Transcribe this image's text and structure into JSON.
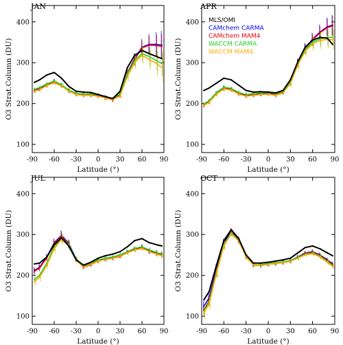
{
  "chart_data": [
    {
      "type": "line",
      "title": "JAN",
      "xlabel": "Latitude (°)",
      "ylabel": "O3 Strat.Column (DU)",
      "xlim": [
        -90,
        90
      ],
      "ylim": [
        80,
        440
      ],
      "xticks": [
        -90,
        -60,
        -30,
        0,
        30,
        60,
        90
      ],
      "xtick_labels": [
        "-90",
        "-60",
        "-30",
        "0",
        "30",
        "60",
        "90"
      ],
      "yticks": [
        100,
        200,
        300,
        400
      ],
      "ytick_labels": [
        "100",
        "200",
        "300",
        "400"
      ],
      "x": [
        -87,
        -80,
        -70,
        -60,
        -50,
        -40,
        -30,
        -20,
        -10,
        0,
        10,
        20,
        30,
        40,
        50,
        60,
        70,
        80,
        87
      ],
      "series": [
        {
          "color": "#000000",
          "values": [
            252,
            258,
            270,
            276,
            262,
            242,
            230,
            228,
            227,
            222,
            217,
            212,
            230,
            288,
            318,
            330,
            322,
            315,
            310
          ],
          "errors": [
            0,
            0,
            0,
            0,
            0,
            0,
            0,
            0,
            0,
            0,
            0,
            0,
            0,
            0,
            0,
            0,
            0,
            0,
            0
          ]
        },
        {
          "color": "#0000ee",
          "values": [
            232,
            236,
            246,
            254,
            245,
            232,
            224,
            222,
            222,
            220,
            215,
            210,
            222,
            275,
            310,
            338,
            345,
            345,
            343
          ],
          "errors": [
            5,
            5,
            5,
            6,
            5,
            5,
            5,
            5,
            5,
            5,
            5,
            5,
            7,
            10,
            14,
            20,
            25,
            30,
            35
          ]
        },
        {
          "color": "#ee0000",
          "values": [
            232,
            235,
            245,
            253,
            244,
            231,
            223,
            221,
            221,
            219,
            214,
            209,
            221,
            274,
            308,
            336,
            343,
            342,
            340
          ],
          "errors": [
            5,
            5,
            5,
            6,
            5,
            5,
            5,
            5,
            5,
            5,
            5,
            5,
            7,
            10,
            14,
            18,
            22,
            26,
            30
          ]
        },
        {
          "color": "#22cc22",
          "values": [
            235,
            239,
            248,
            255,
            246,
            233,
            225,
            223,
            223,
            221,
            216,
            212,
            224,
            272,
            305,
            322,
            315,
            305,
            298
          ],
          "errors": [
            5,
            5,
            5,
            6,
            5,
            5,
            5,
            5,
            5,
            5,
            5,
            5,
            7,
            10,
            14,
            18,
            22,
            26,
            30
          ]
        },
        {
          "color": "#ffaa00",
          "values": [
            230,
            234,
            244,
            251,
            243,
            230,
            222,
            220,
            220,
            218,
            213,
            209,
            219,
            266,
            300,
            318,
            308,
            298,
            288
          ],
          "errors": [
            6,
            6,
            6,
            7,
            6,
            6,
            6,
            6,
            6,
            6,
            6,
            6,
            8,
            12,
            16,
            20,
            25,
            30,
            35
          ]
        }
      ]
    },
    {
      "type": "line",
      "title": "APR",
      "xlabel": "Latitude (°)",
      "ylabel": "O3 Strat.Column (DU)",
      "xlim": [
        -90,
        90
      ],
      "ylim": [
        80,
        440
      ],
      "xticks": [
        -90,
        -60,
        -30,
        0,
        30,
        60,
        90
      ],
      "xtick_labels": [
        "-90",
        "-60",
        "-30",
        "0",
        "30",
        "60",
        "90"
      ],
      "yticks": [
        100,
        200,
        300,
        400
      ],
      "ytick_labels": [
        "100",
        "200",
        "300",
        "400"
      ],
      "legend": [
        "MLS/OMI",
        "CAMchem CARMA",
        "CAMchem MAM4",
        "WACCM CARMA",
        "WACCM MAM4"
      ],
      "legend_position": "top-right",
      "x": [
        -87,
        -80,
        -70,
        -60,
        -50,
        -40,
        -30,
        -20,
        -10,
        0,
        10,
        20,
        30,
        40,
        50,
        60,
        70,
        80,
        87
      ],
      "series": [
        {
          "name": "MLS/OMI",
          "color": "#000000",
          "values": [
            232,
            238,
            250,
            262,
            258,
            245,
            232,
            228,
            229,
            228,
            226,
            232,
            258,
            302,
            338,
            355,
            362,
            360,
            345
          ],
          "errors": [
            0,
            0,
            0,
            0,
            0,
            0,
            0,
            0,
            0,
            0,
            0,
            0,
            0,
            0,
            0,
            0,
            0,
            0,
            0
          ]
        },
        {
          "name": "CAMchem CARMA",
          "color": "#0000ee",
          "values": [
            197,
            205,
            225,
            238,
            235,
            225,
            220,
            222,
            224,
            225,
            222,
            228,
            252,
            300,
            336,
            358,
            375,
            388,
            392
          ],
          "errors": [
            5,
            5,
            5,
            6,
            5,
            5,
            5,
            5,
            5,
            5,
            5,
            5,
            7,
            10,
            12,
            15,
            18,
            22,
            25
          ]
        },
        {
          "name": "CAMchem MAM4",
          "color": "#ee0000",
          "values": [
            196,
            204,
            224,
            237,
            234,
            224,
            219,
            221,
            223,
            224,
            221,
            227,
            251,
            299,
            335,
            356,
            373,
            386,
            390
          ],
          "errors": [
            5,
            5,
            5,
            6,
            5,
            5,
            5,
            5,
            5,
            5,
            5,
            5,
            7,
            10,
            12,
            15,
            18,
            22,
            25
          ]
        },
        {
          "name": "WACCM CARMA",
          "color": "#22cc22",
          "values": [
            199,
            207,
            227,
            240,
            237,
            227,
            222,
            224,
            226,
            227,
            224,
            229,
            253,
            298,
            332,
            350,
            358,
            362,
            362
          ],
          "errors": [
            5,
            5,
            5,
            6,
            5,
            5,
            5,
            5,
            5,
            5,
            5,
            5,
            7,
            10,
            12,
            15,
            18,
            20,
            22
          ]
        },
        {
          "name": "WACCM MAM4",
          "color": "#ffaa00",
          "values": [
            195,
            203,
            223,
            236,
            233,
            223,
            218,
            220,
            222,
            223,
            220,
            226,
            249,
            294,
            328,
            346,
            354,
            357,
            356
          ],
          "errors": [
            6,
            6,
            6,
            7,
            6,
            6,
            6,
            6,
            6,
            6,
            6,
            6,
            8,
            12,
            14,
            16,
            20,
            22,
            25
          ]
        }
      ]
    },
    {
      "type": "line",
      "title": "JUL",
      "xlabel": "Latitude (°)",
      "ylabel": "O3 Strat.Column (DU)",
      "xlim": [
        -90,
        90
      ],
      "ylim": [
        80,
        440
      ],
      "xticks": [
        -90,
        -60,
        -30,
        0,
        30,
        60,
        90
      ],
      "xtick_labels": [
        "-90",
        "-60",
        "-30",
        "0",
        "30",
        "60",
        "90"
      ],
      "yticks": [
        100,
        200,
        300,
        400
      ],
      "ytick_labels": [
        "100",
        "200",
        "300",
        "400"
      ],
      "x": [
        -87,
        -80,
        -70,
        -60,
        -50,
        -40,
        -30,
        -20,
        -10,
        0,
        10,
        20,
        30,
        40,
        50,
        60,
        70,
        80,
        87
      ],
      "series": [
        {
          "color": "#000000",
          "values": [
            228,
            230,
            245,
            275,
            292,
            272,
            238,
            225,
            232,
            242,
            248,
            252,
            258,
            270,
            285,
            290,
            280,
            275,
            272
          ],
          "errors": [
            0,
            0,
            0,
            0,
            0,
            0,
            0,
            0,
            0,
            0,
            0,
            0,
            0,
            0,
            0,
            0,
            0,
            0,
            0
          ]
        },
        {
          "color": "#0000ee",
          "values": [
            212,
            220,
            245,
            280,
            298,
            278,
            240,
            222,
            228,
            236,
            240,
            243,
            248,
            258,
            265,
            270,
            260,
            255,
            252
          ],
          "errors": [
            8,
            8,
            8,
            10,
            12,
            10,
            6,
            5,
            5,
            5,
            5,
            5,
            5,
            5,
            5,
            6,
            6,
            6,
            6
          ]
        },
        {
          "color": "#ee0000",
          "values": [
            210,
            218,
            243,
            278,
            296,
            276,
            238,
            220,
            226,
            235,
            239,
            242,
            246,
            256,
            263,
            268,
            258,
            253,
            250
          ],
          "errors": [
            8,
            8,
            8,
            10,
            12,
            10,
            6,
            5,
            5,
            5,
            5,
            5,
            5,
            5,
            5,
            6,
            6,
            6,
            6
          ]
        },
        {
          "color": "#22cc22",
          "values": [
            190,
            200,
            230,
            270,
            292,
            275,
            240,
            224,
            230,
            238,
            242,
            245,
            250,
            258,
            266,
            270,
            262,
            256,
            252
          ],
          "errors": [
            8,
            8,
            8,
            10,
            12,
            10,
            6,
            5,
            5,
            5,
            5,
            5,
            5,
            5,
            5,
            6,
            6,
            6,
            6
          ]
        },
        {
          "color": "#ffaa00",
          "values": [
            185,
            195,
            225,
            265,
            288,
            272,
            237,
            221,
            227,
            235,
            239,
            242,
            247,
            255,
            262,
            266,
            258,
            252,
            248
          ],
          "errors": [
            10,
            10,
            10,
            12,
            14,
            12,
            7,
            6,
            6,
            6,
            6,
            6,
            6,
            6,
            6,
            7,
            7,
            7,
            7
          ]
        }
      ]
    },
    {
      "type": "line",
      "title": "OCT",
      "xlabel": "Latitude (°)",
      "ylabel": "O3 Strat.Column (DU)",
      "xlim": [
        -90,
        90
      ],
      "ylim": [
        80,
        440
      ],
      "xticks": [
        -90,
        -60,
        -30,
        0,
        30,
        60,
        90
      ],
      "xtick_labels": [
        "-90",
        "-60",
        "-30",
        "0",
        "30",
        "60",
        "90"
      ],
      "yticks": [
        100,
        200,
        300,
        400
      ],
      "ytick_labels": [
        "100",
        "200",
        "300",
        "400"
      ],
      "x": [
        -87,
        -80,
        -70,
        -60,
        -50,
        -40,
        -30,
        -20,
        -10,
        0,
        10,
        20,
        30,
        40,
        50,
        60,
        70,
        80,
        87
      ],
      "series": [
        {
          "color": "#000000",
          "values": [
            140,
            160,
            225,
            285,
            312,
            290,
            250,
            230,
            230,
            232,
            235,
            238,
            242,
            255,
            268,
            272,
            265,
            255,
            248
          ],
          "errors": [
            0,
            0,
            0,
            0,
            0,
            0,
            0,
            0,
            0,
            0,
            0,
            0,
            0,
            0,
            0,
            0,
            0,
            0,
            0
          ]
        },
        {
          "color": "#0000ee",
          "values": [
            125,
            145,
            215,
            280,
            308,
            288,
            248,
            226,
            225,
            228,
            230,
            232,
            236,
            245,
            255,
            258,
            250,
            238,
            228
          ],
          "errors": [
            12,
            12,
            12,
            10,
            8,
            8,
            6,
            5,
            5,
            5,
            5,
            5,
            5,
            5,
            5,
            6,
            6,
            6,
            6
          ]
        },
        {
          "color": "#ee0000",
          "values": [
            115,
            138,
            210,
            276,
            305,
            286,
            246,
            225,
            224,
            227,
            229,
            231,
            235,
            244,
            254,
            257,
            249,
            236,
            226
          ],
          "errors": [
            12,
            12,
            12,
            10,
            8,
            8,
            6,
            5,
            5,
            5,
            5,
            5,
            5,
            5,
            5,
            6,
            6,
            6,
            6
          ]
        },
        {
          "color": "#22cc22",
          "values": [
            112,
            135,
            208,
            275,
            304,
            285,
            246,
            226,
            226,
            229,
            231,
            233,
            236,
            244,
            252,
            255,
            247,
            234,
            224
          ],
          "errors": [
            12,
            12,
            12,
            10,
            8,
            8,
            6,
            5,
            5,
            5,
            5,
            5,
            5,
            5,
            5,
            6,
            6,
            6,
            6
          ]
        },
        {
          "color": "#ffaa00",
          "values": [
            108,
            130,
            205,
            272,
            302,
            284,
            245,
            225,
            224,
            227,
            229,
            231,
            234,
            242,
            250,
            253,
            245,
            232,
            222
          ],
          "errors": [
            14,
            14,
            14,
            12,
            10,
            9,
            7,
            6,
            6,
            6,
            6,
            6,
            6,
            6,
            6,
            7,
            7,
            7,
            7
          ]
        }
      ]
    }
  ]
}
